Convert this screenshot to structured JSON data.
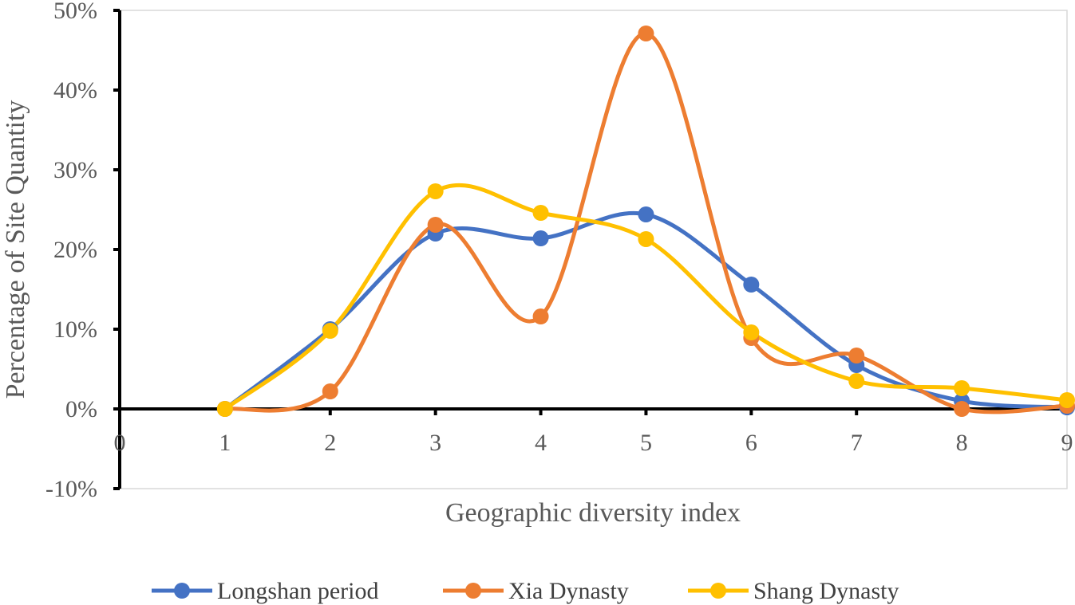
{
  "chart_data": {
    "type": "line",
    "smooth": true,
    "title": "",
    "xlabel": "Geographic diversity index",
    "ylabel": "Percentage of Site Quantity",
    "xlim": [
      0,
      9
    ],
    "ylim": [
      -10,
      50
    ],
    "x_ticks": [
      "0",
      "1",
      "2",
      "3",
      "4",
      "5",
      "6",
      "7",
      "8",
      "9"
    ],
    "y_ticks": [
      "-10%",
      "0%",
      "10%",
      "20%",
      "30%",
      "40%",
      "50%"
    ],
    "y_tick_values": [
      -10,
      0,
      10,
      20,
      30,
      40,
      50
    ],
    "x": [
      1,
      2,
      3,
      4,
      5,
      6,
      7,
      8,
      9
    ],
    "legend_position": "bottom",
    "series": [
      {
        "name": "Longshan period",
        "color": "#4472C4",
        "values": [
          0,
          10,
          22,
          21.4,
          24.4,
          15.6,
          5.5,
          1.0,
          0.2
        ]
      },
      {
        "name": "Xia Dynasty",
        "color": "#ED7D31",
        "values": [
          0,
          2.2,
          23.1,
          11.6,
          47.1,
          8.9,
          6.7,
          0,
          0.4
        ]
      },
      {
        "name": "Shang Dynasty",
        "color": "#FFC000",
        "values": [
          0,
          9.8,
          27.3,
          24.6,
          21.3,
          9.6,
          3.5,
          2.6,
          1.1
        ]
      }
    ]
  }
}
